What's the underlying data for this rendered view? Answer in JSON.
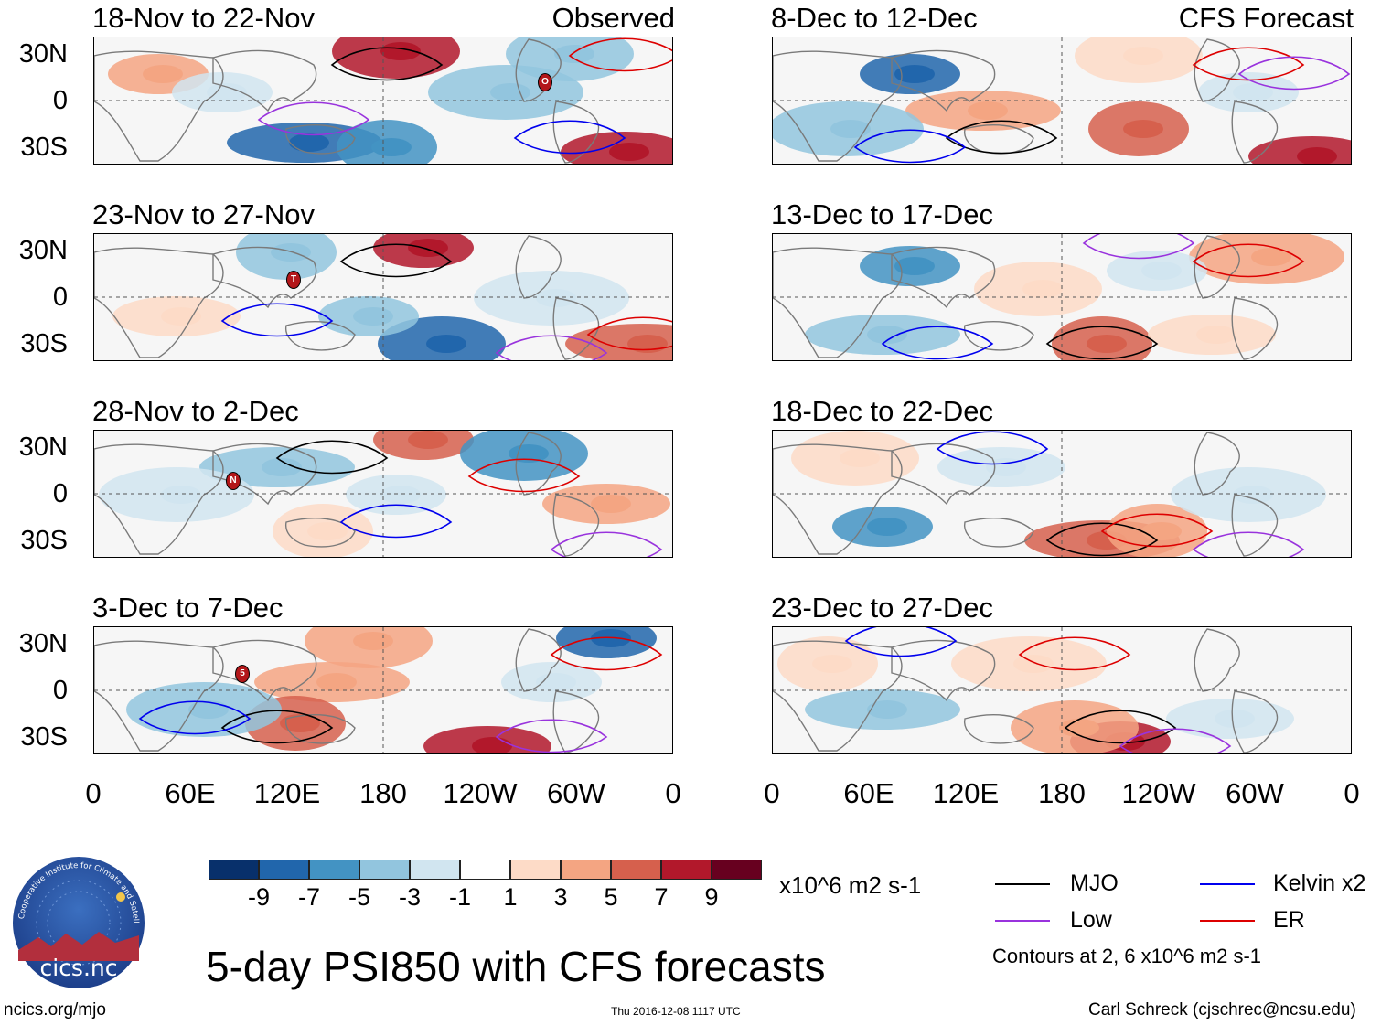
{
  "panels": [
    {
      "title": "18-Nov to 22-Nov",
      "tag": "Observed"
    },
    {
      "title": "23-Nov to 27-Nov",
      "tag": ""
    },
    {
      "title": "28-Nov to 2-Dec",
      "tag": ""
    },
    {
      "title": "3-Dec to 7-Dec",
      "tag": ""
    },
    {
      "title": "8-Dec to 12-Dec",
      "tag": "CFS Forecast"
    },
    {
      "title": "13-Dec to 17-Dec",
      "tag": ""
    },
    {
      "title": "18-Dec to 22-Dec",
      "tag": ""
    },
    {
      "title": "23-Dec to 27-Dec",
      "tag": ""
    }
  ],
  "lat_labels": [
    "30N",
    "0",
    "30S"
  ],
  "lon_labels": [
    "0",
    "60E",
    "120E",
    "180",
    "120W",
    "60W",
    "0"
  ],
  "colorbar": {
    "colors": [
      "#08306b",
      "#2166ac",
      "#4393c3",
      "#92c5de",
      "#d1e5f0",
      "#ffffff",
      "#fddbc7",
      "#f4a582",
      "#d6604d",
      "#b2182b",
      "#67001f"
    ],
    "labels": [
      "-9",
      "-7",
      "-5",
      "-3",
      "-1",
      "1",
      "3",
      "5",
      "7",
      "9"
    ],
    "units": "x10^6 m2 s-1"
  },
  "legend": {
    "items": [
      {
        "label": "MJO",
        "color": "#000000"
      },
      {
        "label": "Kelvin x2",
        "color": "#0000ee"
      },
      {
        "label": "Low",
        "color": "#9933dd"
      },
      {
        "label": "ER",
        "color": "#dd0000"
      }
    ],
    "note": "Contours at 2, 6 x10^6 m2 s-1"
  },
  "main_title": "5-day PSI850 with CFS forecasts",
  "logo": {
    "text": "cics.nc",
    "ring_text": "Cooperative Institute for Climate and Satellites"
  },
  "footer": {
    "left": "ncics.org/mjo",
    "center": "Thu 2016-12-08 1117 UTC",
    "right": "Carl Schreck (cjschrec@ncsu.edu)"
  },
  "storm_markers": [
    {
      "panel": 0,
      "label": "O"
    },
    {
      "panel": 1,
      "label": "T"
    },
    {
      "panel": 2,
      "label": "N"
    },
    {
      "panel": 3,
      "label": "5"
    }
  ]
}
